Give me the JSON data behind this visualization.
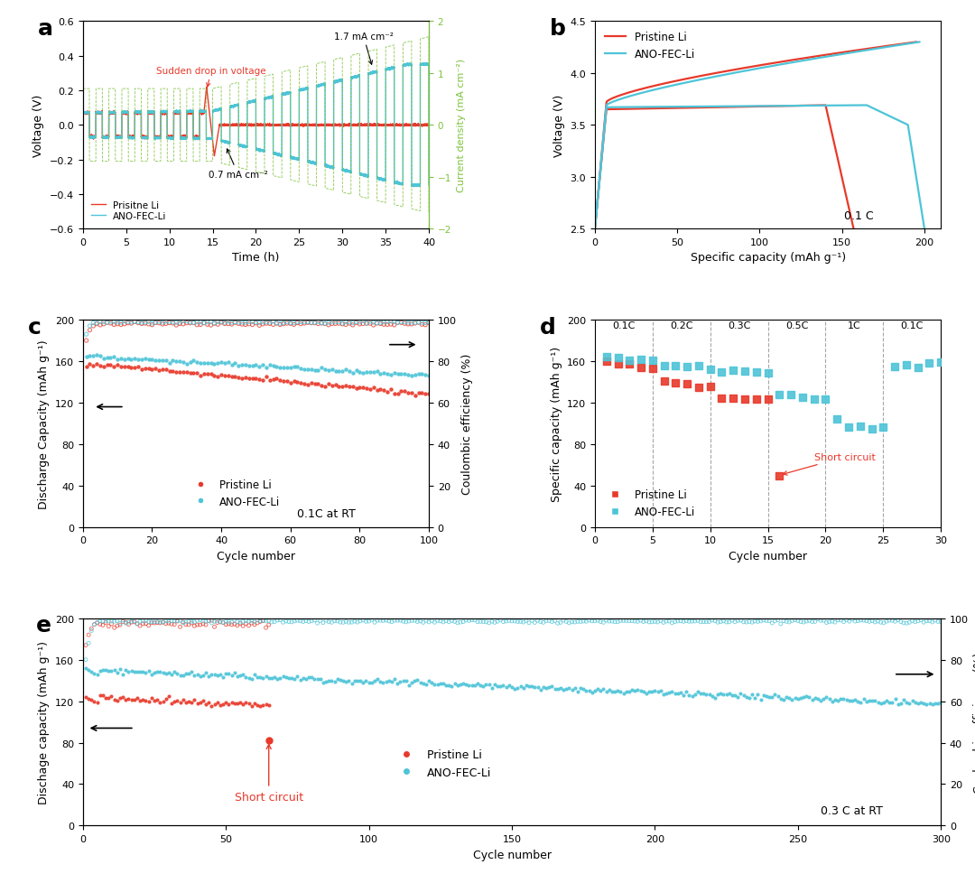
{
  "panel_labels": [
    "a",
    "b",
    "c",
    "d",
    "e"
  ],
  "panel_label_fontsize": 18,
  "colors": {
    "red": "#E8392A",
    "blue": "#4DC4D8",
    "green": "#7DC33B"
  },
  "panel_a": {
    "xlabel": "Time (h)",
    "ylabel": "Voltage (V)",
    "ylabel2": "Current density (mA cm⁻²)",
    "xlim": [
      0,
      40
    ],
    "ylim": [
      -0.6,
      0.6
    ],
    "ylim2": [
      -2,
      2
    ],
    "xticks": [
      0,
      5,
      10,
      15,
      20,
      25,
      30,
      35,
      40
    ],
    "yticks": [
      -0.6,
      -0.4,
      -0.2,
      0.0,
      0.2,
      0.4,
      0.6
    ],
    "annotation1": "Sudden drop in voltage",
    "annotation2": "0.7 mA cm⁻²",
    "annotation3": "1.7 mA cm⁻²",
    "legend": [
      "Prisitne Li",
      "ANO-FEC-Li"
    ]
  },
  "panel_b": {
    "xlabel": "Specific capacity (mAh g⁻¹)",
    "ylabel": "Voltage (V)",
    "xlim": [
      0,
      210
    ],
    "ylim": [
      2.5,
      4.5
    ],
    "xticks": [
      0,
      50,
      100,
      150,
      200
    ],
    "yticks": [
      2.5,
      3.0,
      3.5,
      4.0,
      4.5
    ],
    "annotation": "0.1 C",
    "legend": [
      "Pristine Li",
      "ANO-FEC-Li"
    ]
  },
  "panel_c": {
    "xlabel": "Cycle number",
    "ylabel": "Discharge Capacity (mAh g⁻¹)",
    "ylabel2": "Coulombic efficiency (%)",
    "xlim": [
      0,
      100
    ],
    "ylim": [
      0,
      200
    ],
    "ylim2": [
      0,
      100
    ],
    "xticks": [
      0,
      20,
      40,
      60,
      80,
      100
    ],
    "yticks": [
      0,
      40,
      80,
      120,
      160,
      200
    ],
    "yticks2": [
      0,
      20,
      40,
      60,
      80,
      100
    ],
    "annotation": "0.1C at RT",
    "legend": [
      "Pristine Li",
      "ANO-FEC-Li"
    ]
  },
  "panel_d": {
    "xlabel": "Cycle number",
    "ylabel": "Specific capacity (mAh g⁻¹)",
    "xlim": [
      0,
      30
    ],
    "ylim": [
      0,
      200
    ],
    "xticks": [
      0,
      5,
      10,
      15,
      20,
      25,
      30
    ],
    "yticks": [
      0,
      40,
      80,
      120,
      160,
      200
    ],
    "rate_labels": [
      "0.1C",
      "0.2C",
      "0.3C",
      "0.5C",
      "1C",
      "0.1C"
    ],
    "vlines": [
      5,
      10,
      15,
      20,
      25
    ],
    "annotation": "Short circuit",
    "legend": [
      "Pristine Li",
      "ANO-FEC-Li"
    ]
  },
  "panel_e": {
    "xlabel": "Cycle number",
    "ylabel": "Dischage capacity (mAh g⁻¹)",
    "ylabel2": "Coulombic efficiency (%)",
    "xlim": [
      0,
      300
    ],
    "ylim": [
      0,
      200
    ],
    "ylim2": [
      0,
      100
    ],
    "xticks": [
      0,
      50,
      100,
      150,
      200,
      250,
      300
    ],
    "yticks": [
      0,
      40,
      80,
      120,
      160,
      200
    ],
    "yticks2": [
      0,
      20,
      40,
      60,
      80,
      100
    ],
    "annotation": "0.3 C at RT",
    "annotation2": "Short circuit",
    "legend": [
      "Pristine Li",
      "ANO-FEC-Li"
    ]
  }
}
